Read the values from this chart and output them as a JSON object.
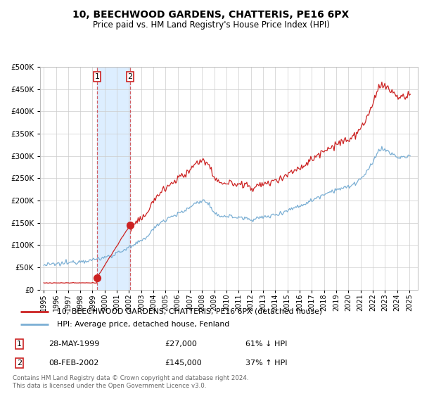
{
  "title": "10, BEECHWOOD GARDENS, CHATTERIS, PE16 6PX",
  "subtitle": "Price paid vs. HM Land Registry's House Price Index (HPI)",
  "legend_line1": "10, BEECHWOOD GARDENS, CHATTERIS, PE16 6PX (detached house)",
  "legend_line2": "HPI: Average price, detached house, Fenland",
  "footnote": "Contains HM Land Registry data © Crown copyright and database right 2024.\nThis data is licensed under the Open Government Licence v3.0.",
  "sale1_label": "1",
  "sale1_date": "28-MAY-1999",
  "sale1_price": 27000,
  "sale1_price_str": "£27,000",
  "sale1_hpi": "61% ↓ HPI",
  "sale1_year": 1999.37,
  "sale2_label": "2",
  "sale2_date": "08-FEB-2002",
  "sale2_price": 145000,
  "sale2_price_str": "£145,000",
  "sale2_hpi": "37% ↑ HPI",
  "sale2_year": 2002.08,
  "hpi_color": "#7bafd4",
  "price_color": "#cc2222",
  "background_color": "#ffffff",
  "grid_color": "#cccccc",
  "highlight_color": "#ddeeff",
  "ylim_max": 500000,
  "xmin": 1995,
  "xmax": 2025,
  "title_fontsize": 10,
  "subtitle_fontsize": 8.5
}
